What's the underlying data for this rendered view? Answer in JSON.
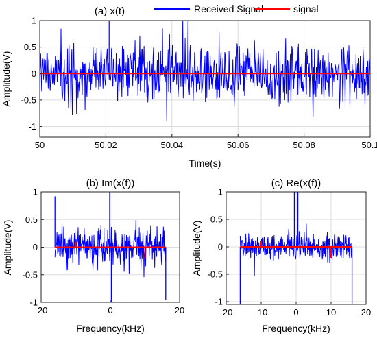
{
  "chart_data": [
    {
      "type": "line",
      "title": "(a) x(t)",
      "xlabel": "Time(s)",
      "ylabel": "Amplitude(V)",
      "xlim": [
        50,
        50.1
      ],
      "ylim": [
        -1.2,
        1.0
      ],
      "xticks": [
        "50",
        "50.02",
        "50.04",
        "50.06",
        "50.08",
        "50.1"
      ],
      "yticks": [
        "-1",
        "-0.5",
        "0",
        "0.5",
        "1"
      ],
      "xtick_values": [
        50,
        50.02,
        50.04,
        50.06,
        50.08,
        50.1
      ],
      "ytick_values": [
        -1,
        -0.5,
        0,
        0.5,
        1
      ],
      "grid": true,
      "legend": "top",
      "series": [
        {
          "name": "Received Signal",
          "color": "#0000ff",
          "kind": "noise",
          "x_range": [
            50,
            50.1
          ],
          "amplitude": 0.5,
          "peak": 1.0
        },
        {
          "name": "signal",
          "color": "#ff0000",
          "kind": "constant",
          "x_range": [
            50,
            50.1
          ],
          "y": 0
        }
      ]
    },
    {
      "type": "line",
      "title": "(b) Im(x(f))",
      "xlabel": "Frequency(kHz)",
      "ylabel": "Amplitude(V)",
      "xlim": [
        -20,
        20
      ],
      "ylim": [
        -1,
        1
      ],
      "xticks": [
        "-20",
        "0",
        "20"
      ],
      "yticks": [
        "-1",
        "-0.5",
        "0",
        "0.5",
        "1"
      ],
      "xtick_values": [
        -20,
        0,
        20
      ],
      "ytick_values": [
        -1,
        -0.5,
        0,
        0.5,
        1
      ],
      "grid": true,
      "series": [
        {
          "name": "",
          "color": "#0000ff",
          "kind": "noise",
          "x_range": [
            -16,
            16
          ],
          "amplitude": 0.3,
          "spikes": [
            {
              "x": -16,
              "y": 0.92
            },
            {
              "x": -0.2,
              "y": 1.0
            },
            {
              "x": 0.3,
              "y": -1.0
            },
            {
              "x": 16,
              "y": -0.95
            }
          ]
        },
        {
          "name": "",
          "color": "#ff0000",
          "kind": "impulses",
          "x_range": [
            -16,
            16
          ],
          "y": 0,
          "impulses": [
            {
              "x": -10,
              "y": 0.1
            },
            {
              "x": 10,
              "y": -0.2
            }
          ]
        }
      ]
    },
    {
      "type": "line",
      "title": "(c) Re(x(f))",
      "xlabel": "Frequency(kHz)",
      "ylabel": "Amplitude(V)",
      "xlim": [
        -20,
        20
      ],
      "ylim": [
        -1.05,
        1.0
      ],
      "xticks": [
        "-20",
        "-10",
        "0",
        "10",
        "20"
      ],
      "yticks": [
        "-1",
        "-0.5",
        "0",
        "0.5",
        "1"
      ],
      "xtick_values": [
        -20,
        -10,
        0,
        10,
        20
      ],
      "ytick_values": [
        -1,
        -0.5,
        0,
        0.5,
        1
      ],
      "grid": true,
      "series": [
        {
          "name": "",
          "color": "#0000ff",
          "kind": "noise",
          "x_range": [
            -16,
            16
          ],
          "amplitude": 0.22,
          "spikes": [
            {
              "x": -16,
              "y": -1.05
            },
            {
              "x": -0.5,
              "y": 1.0
            },
            {
              "x": 0.5,
              "y": 1.0
            },
            {
              "x": 16,
              "y": -1.05
            }
          ]
        },
        {
          "name": "",
          "color": "#ff0000",
          "kind": "impulses",
          "x_range": [
            -16,
            16
          ],
          "y": 0,
          "impulses": [
            {
              "x": -10,
              "y": 0.1
            },
            {
              "x": 10,
              "y": -0.2
            }
          ]
        }
      ]
    }
  ]
}
